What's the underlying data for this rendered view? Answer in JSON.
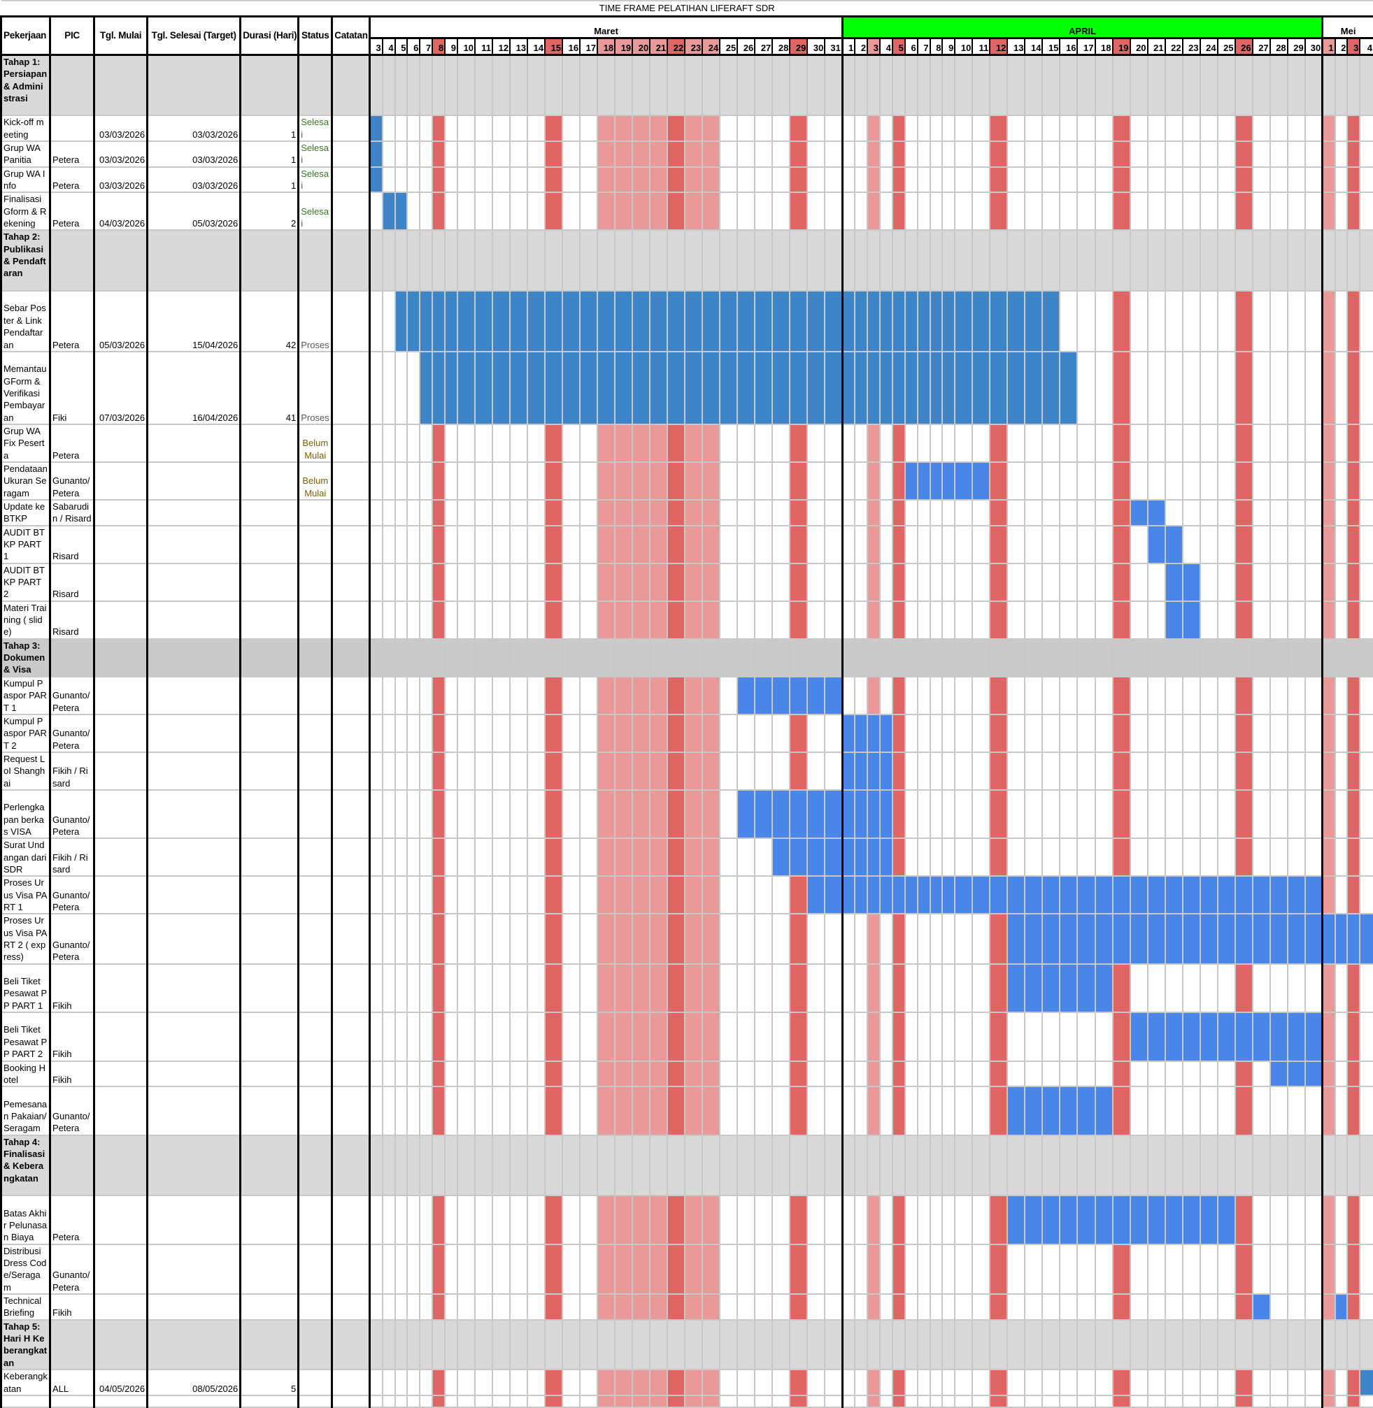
{
  "title": "TIME FRAME PELATIHAN LIFERAFT SDR",
  "columns": [
    "Pekerjaan",
    "PIC",
    "Tgl. Mulai",
    "Tgl. Selesai (Target)",
    "Durasi (Hari)",
    "Status",
    "Catatan"
  ],
  "months": [
    {
      "name": "Maret",
      "num": 3,
      "bg": "#ffffff",
      "days": [
        3,
        4,
        5,
        6,
        7,
        8,
        9,
        10,
        11,
        12,
        13,
        14,
        15,
        16,
        17,
        18,
        19,
        20,
        21,
        22,
        23,
        24,
        25,
        26,
        27,
        28,
        29,
        30,
        31
      ]
    },
    {
      "name": "APRIL",
      "num": 4,
      "bg": "#00ff00",
      "days": [
        1,
        2,
        3,
        4,
        5,
        6,
        7,
        8,
        9,
        10,
        11,
        12,
        13,
        14,
        15,
        16,
        17,
        18,
        19,
        20,
        21,
        22,
        23,
        24,
        25,
        26,
        27,
        28,
        29,
        30
      ]
    },
    {
      "name": "Mei",
      "num": 5,
      "bg": "#ffffff",
      "days": [
        1,
        2,
        3,
        4
      ]
    }
  ],
  "holidays_dark": [
    "3-8",
    "3-15",
    "3-22",
    "3-29",
    "4-5",
    "4-12",
    "4-19",
    "4-26",
    "5-3"
  ],
  "holidays_light": [
    "3-18",
    "3-19",
    "3-20",
    "3-21",
    "3-23",
    "3-24",
    "4-3",
    "5-1"
  ],
  "colors": {
    "holiday_dark": "#e06666",
    "holiday_light": "#ea9999",
    "bar": "#4a86e8",
    "bar_dark": "#3d85c6",
    "status_selesai": "#38761d",
    "status_proses": "#595959",
    "status_belum": "#7f6000",
    "phase_bg": "#d9d9d9"
  },
  "rows": [
    {
      "type": "phase",
      "label": "Tahap 1: Persiapan & Administrasi"
    },
    {
      "label": "Kick-off meeting",
      "pic": "",
      "start": "03/03/2026",
      "end": "03/03/2026",
      "duration": "1",
      "status": "Selesai",
      "status_kind": "selesai",
      "bars": [
        [
          "3-3",
          "3-3"
        ]
      ],
      "bar_color": "dark"
    },
    {
      "label": "Grup WA Panitia",
      "pic": "Petera",
      "start": "03/03/2026",
      "end": "03/03/2026",
      "duration": "1",
      "status": "Selesai",
      "status_kind": "selesai",
      "bars": [
        [
          "3-3",
          "3-3"
        ]
      ],
      "bar_color": "dark"
    },
    {
      "label": "Grup WA Info",
      "pic": "Petera",
      "start": "03/03/2026",
      "end": "03/03/2026",
      "duration": "1",
      "status": "Selesai",
      "status_kind": "selesai",
      "bars": [
        [
          "3-3",
          "3-3"
        ]
      ],
      "bar_color": "dark"
    },
    {
      "label": "Finalisasi Gform & Rekening",
      "pic": "Petera",
      "start": "04/03/2026",
      "end": "05/03/2026",
      "duration": "2",
      "status": "Selesai",
      "status_kind": "selesai",
      "bars": [
        [
          "3-4",
          "3-5"
        ]
      ],
      "bar_color": "dark"
    },
    {
      "type": "phase",
      "label": "Tahap 2: Publikasi & Pendaftaran"
    },
    {
      "label": "Sebar Poster & Link Pendaftaran",
      "pic": "Petera",
      "start": "05/03/2026",
      "end": "15/04/2026",
      "duration": "42",
      "status": "Proses",
      "status_kind": "proses",
      "bars": [
        [
          "3-5",
          "4-15"
        ]
      ],
      "bar_color": "dark"
    },
    {
      "label": "Memantau GForm & Verifikasi Pembayaran",
      "pic": "Fiki",
      "start": "07/03/2026",
      "end": "16/04/2026",
      "duration": "41",
      "status": "Proses",
      "status_kind": "proses",
      "bars": [
        [
          "3-7",
          "4-16"
        ]
      ],
      "bar_color": "dark"
    },
    {
      "label": "Grup WA Fix Peserta",
      "pic": "Petera",
      "start": "",
      "end": "",
      "duration": "",
      "status": "Belum Mulai",
      "status_kind": "belum",
      "bars": []
    },
    {
      "label": "Pendataan Ukuran Seragam",
      "pic": "Gunanto/ Petera",
      "start": "",
      "end": "",
      "duration": "",
      "status": "Belum Mulai",
      "status_kind": "belum",
      "bars": [
        [
          "4-6",
          "4-11"
        ]
      ]
    },
    {
      "label": "Update ke BTKP",
      "pic": "Sabarudin / Risard",
      "start": "",
      "end": "",
      "duration": "",
      "status": "",
      "bars": [
        [
          "4-20",
          "4-21"
        ]
      ]
    },
    {
      "label": "AUDIT BTKP PART 1",
      "pic": "Risard",
      "start": "",
      "end": "",
      "duration": "",
      "status": "",
      "bars": [
        [
          "4-21",
          "4-22"
        ]
      ]
    },
    {
      "label": "AUDIT BTKP PART 2",
      "pic": "Risard",
      "start": "",
      "end": "",
      "duration": "",
      "status": "",
      "bars": [
        [
          "4-22",
          "4-23"
        ]
      ]
    },
    {
      "label": "Materi Training ( slide)",
      "pic": "Risard",
      "start": "",
      "end": "",
      "duration": "",
      "status": "",
      "bars": [
        [
          "4-22",
          "4-23"
        ]
      ]
    },
    {
      "type": "phase",
      "label": "Tahap 3: Dokumen & Visa",
      "dark": true
    },
    {
      "label": "Kumpul Paspor PART 1",
      "pic": "Gunanto/ Petera",
      "start": "",
      "end": "",
      "duration": "",
      "status": "",
      "bars": [
        [
          "3-26",
          "3-31"
        ]
      ]
    },
    {
      "label": "Kumpul Paspor PART 2",
      "pic": "Gunanto/ Petera",
      "start": "",
      "end": "",
      "duration": "",
      "status": "",
      "bars": [
        [
          "4-1",
          "4-4"
        ]
      ]
    },
    {
      "label": "Request LoI Shanghai",
      "pic": "Fikih / Risard",
      "start": "",
      "end": "",
      "duration": "",
      "status": "",
      "bars": [
        [
          "4-1",
          "4-4"
        ]
      ]
    },
    {
      "label": "Perlengkapan berkas VISA",
      "pic": "Gunanto/ Petera",
      "start": "",
      "end": "",
      "duration": "",
      "status": "",
      "bars": [
        [
          "3-26",
          "4-4"
        ]
      ]
    },
    {
      "label": "Surat Undangan dari SDR",
      "pic": "Fikih / Risard",
      "start": "",
      "end": "",
      "duration": "",
      "status": "",
      "bars": [
        [
          "3-28",
          "4-4"
        ]
      ]
    },
    {
      "label": "Proses Urus Visa PART 1",
      "pic": "Gunanto/ Petera",
      "start": "",
      "end": "",
      "duration": "",
      "status": "",
      "bars": [
        [
          "3-30",
          "4-30"
        ]
      ]
    },
    {
      "label": "Proses Urus Visa PART 2 ( express)",
      "pic": "Gunanto/ Petera",
      "start": "",
      "end": "",
      "duration": "",
      "status": "",
      "bars": [
        [
          "4-13",
          "5-4"
        ]
      ]
    },
    {
      "label": "Beli Tiket Pesawat PP PART 1",
      "pic": "Fikih",
      "start": "",
      "end": "",
      "duration": "",
      "status": "",
      "bars": [
        [
          "4-13",
          "4-18"
        ]
      ]
    },
    {
      "label": "Beli Tiket Pesawat PP PART 2",
      "pic": "Fikih",
      "start": "",
      "end": "",
      "duration": "",
      "status": "",
      "bars": [
        [
          "4-20",
          "4-30"
        ]
      ]
    },
    {
      "label": "Booking Hotel",
      "pic": "Fikih",
      "start": "",
      "end": "",
      "duration": "",
      "status": "",
      "bars": [
        [
          "4-28",
          "4-30"
        ]
      ]
    },
    {
      "label": "Pemesanan Pakaian/Seragam",
      "pic": "Gunanto/ Petera",
      "start": "",
      "end": "",
      "duration": "",
      "status": "",
      "bars": [
        [
          "4-13",
          "4-18"
        ]
      ]
    },
    {
      "type": "phase",
      "label": "Tahap 4: Finalisasi & Keberangkatan"
    },
    {
      "label": "Batas Akhir Pelunasan Biaya",
      "pic": "Petera",
      "start": "",
      "end": "",
      "duration": "",
      "status": "",
      "bars": [
        [
          "4-13",
          "4-25"
        ]
      ]
    },
    {
      "label": "Distribusi Dress Code/Seragam",
      "pic": "Gunanto/ Petera",
      "start": "",
      "end": "",
      "duration": "",
      "status": "",
      "bars": []
    },
    {
      "label": "Technical Briefing",
      "pic": "Fikih",
      "start": "",
      "end": "",
      "duration": "",
      "status": "",
      "bars": [
        [
          "4-27",
          "4-27"
        ],
        [
          "5-2",
          "5-2"
        ]
      ]
    },
    {
      "type": "phase",
      "label": "Tahap 5: Hari H Keberangkatan"
    },
    {
      "label": "Keberangkatan",
      "pic": "ALL",
      "start": "04/05/2026",
      "end": "08/05/2026",
      "duration": "5",
      "status": "",
      "bars": [
        [
          "5-4",
          "5-4"
        ]
      ],
      "bar_color": "dark"
    },
    {
      "type": "empty"
    }
  ]
}
